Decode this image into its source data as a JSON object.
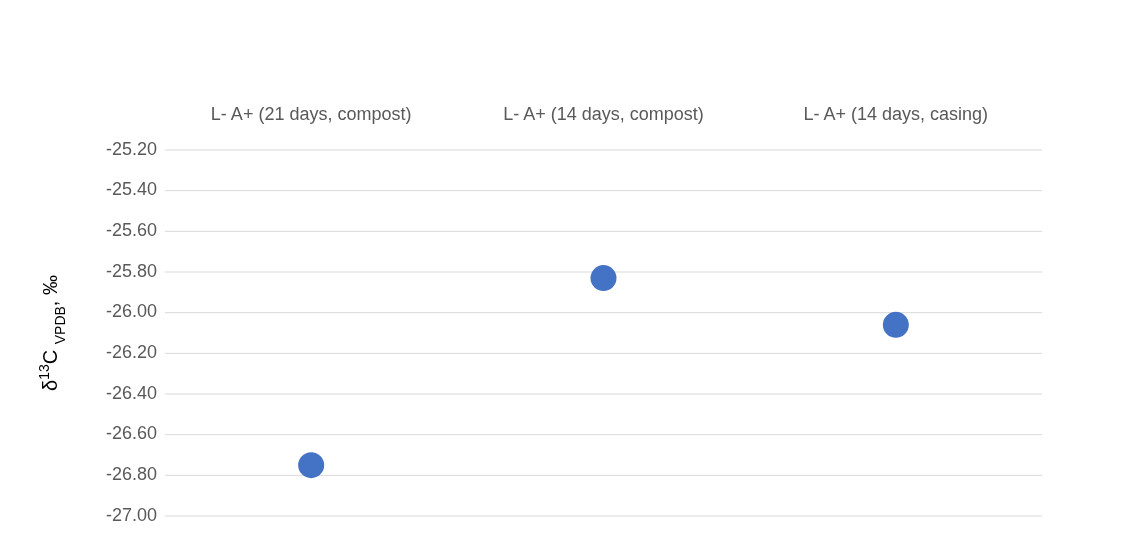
{
  "chart_data": {
    "type": "scatter",
    "ylabel": "δ$^{13}$C $_{VPDB}$, ‰",
    "categories": [
      "L- A+ (21 days, compost)",
      "L- A+ (14 days, compost)",
      "L- A+ (14 days, casing)"
    ],
    "series": [
      {
        "color": "#4472c4",
        "values": [
          -26.75,
          -25.83,
          -26.06
        ]
      }
    ],
    "ylim": [
      -27.0,
      -25.2
    ],
    "yticks": [
      {
        "value": -27.0,
        "label": "-27.00"
      },
      {
        "value": -26.8,
        "label": "-26.80"
      },
      {
        "value": -26.6,
        "label": "-26.60"
      },
      {
        "value": -26.4,
        "label": "-26.40"
      },
      {
        "value": -26.2,
        "label": "-26.20"
      },
      {
        "value": -26.0,
        "label": "-26.00"
      },
      {
        "value": -25.8,
        "label": "-25.80"
      },
      {
        "value": -25.6,
        "label": "-25.60"
      },
      {
        "value": -25.4,
        "label": "-25.40"
      },
      {
        "value": -25.2,
        "label": "-25.20"
      }
    ],
    "grid": "y",
    "marker": "circle"
  }
}
